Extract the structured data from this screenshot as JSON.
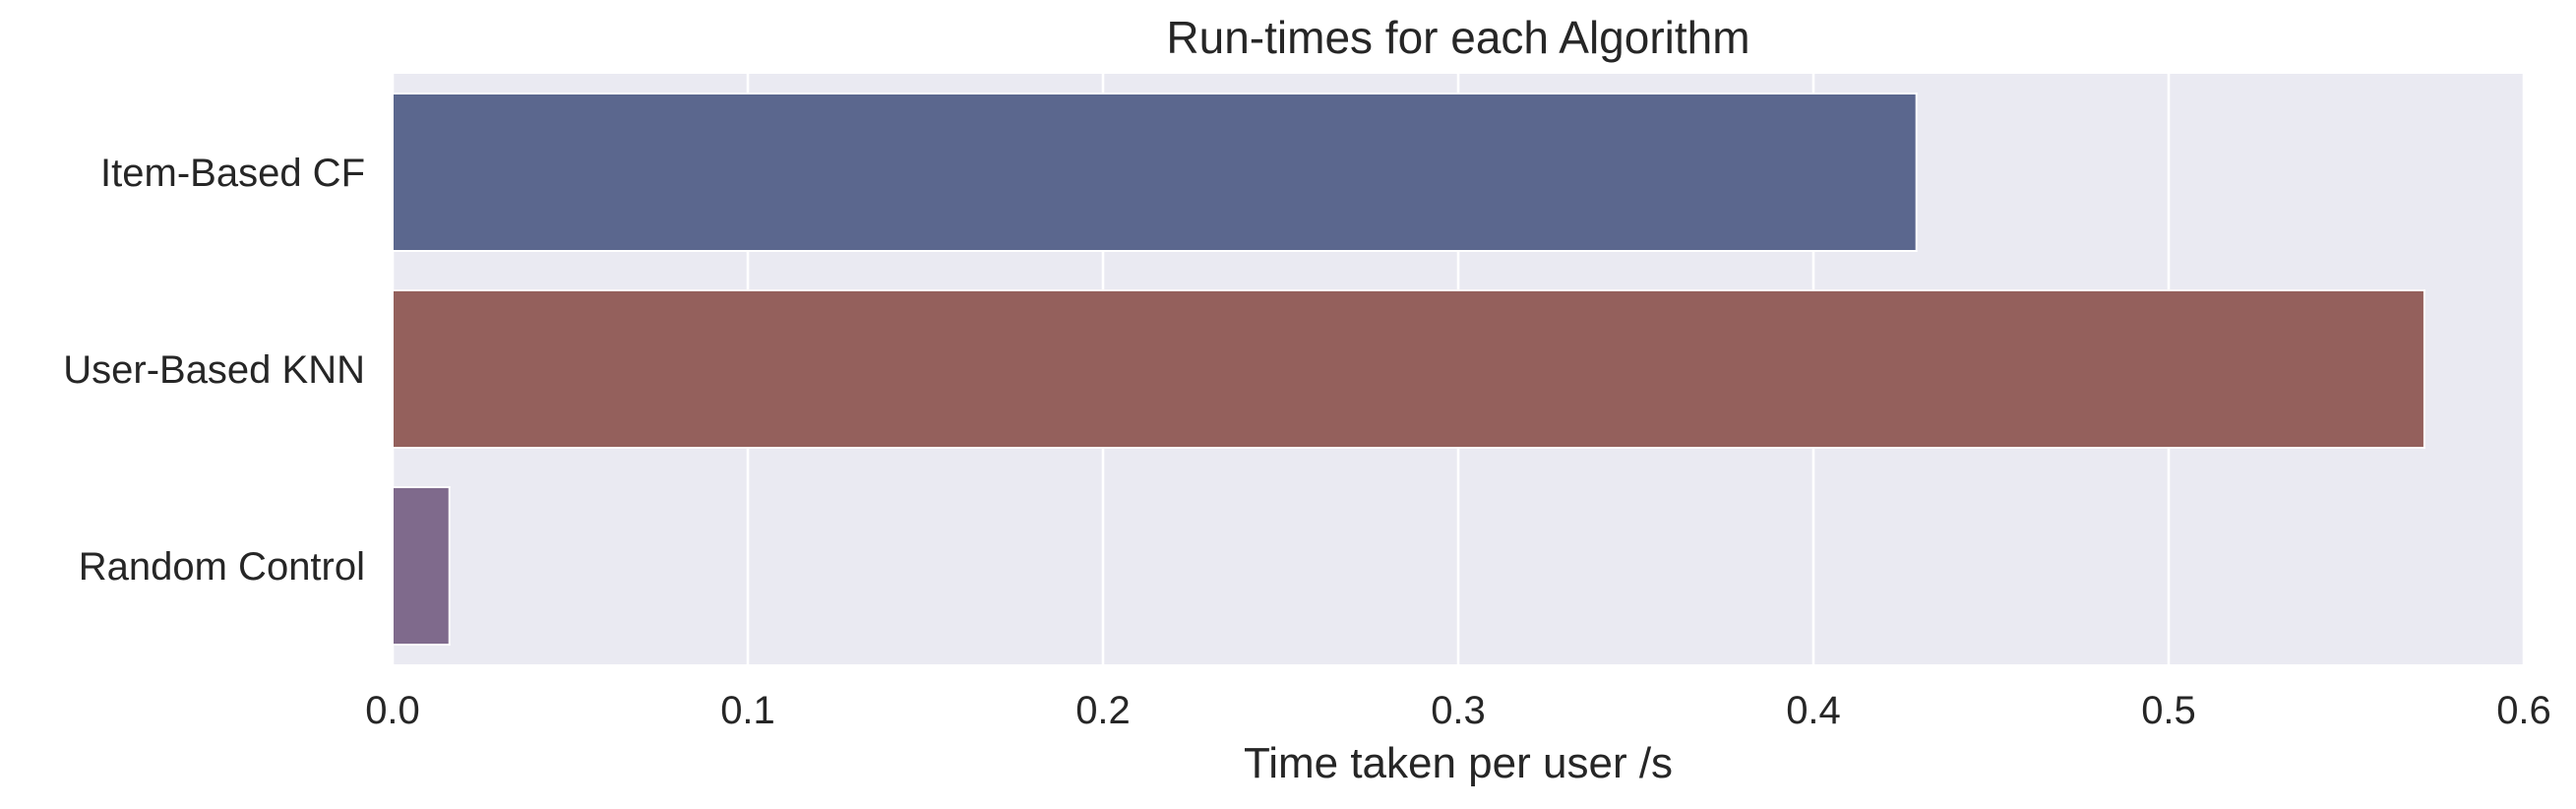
{
  "chart_data": {
    "type": "bar",
    "orientation": "horizontal",
    "title": "Run-times for each Algorithm",
    "xlabel": "Time taken per user /s",
    "ylabel": "",
    "categories": [
      "Item-Based CF",
      "User-Based KNN",
      "Random Control"
    ],
    "values": [
      0.429,
      0.572,
      0.016
    ],
    "colors": [
      "#5b678e",
      "#94605c",
      "#7f6a8c"
    ],
    "xlim": [
      0.0,
      0.6
    ],
    "xticks": [
      "0.0",
      "0.1",
      "0.2",
      "0.3",
      "0.4",
      "0.5",
      "0.6"
    ],
    "grid": true,
    "background": "#eaeaf2"
  }
}
